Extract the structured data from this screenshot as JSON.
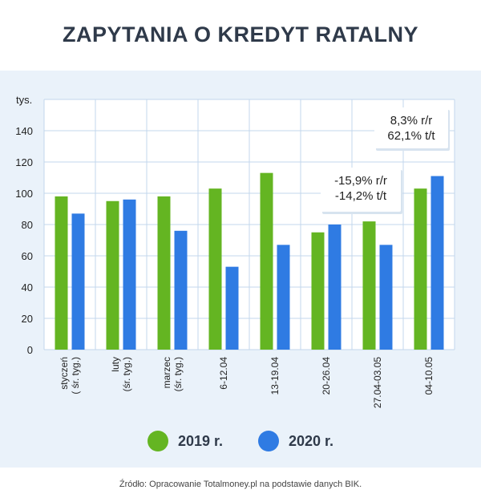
{
  "title": "ZAPYTANIA O KREDYT RATALNY",
  "source": "Źródło: Opracowanie Totalmoney.pl na podstawie danych BIK.",
  "legend": [
    {
      "label": "2019 r.",
      "color": "#64b522"
    },
    {
      "label": "2020 r.",
      "color": "#2f7be3"
    }
  ],
  "annotations": [
    {
      "lines": [
        "8,3% r/r",
        "62,1% t/t"
      ]
    },
    {
      "lines": [
        "-15,9% r/r",
        "-14,2% t/t"
      ]
    }
  ],
  "chart_data": {
    "type": "bar",
    "ylabel": "tys.",
    "ylim": [
      0,
      160
    ],
    "yticks": [
      0,
      20,
      40,
      60,
      80,
      100,
      120,
      140
    ],
    "grid": true,
    "legend_position": "bottom",
    "categories": [
      [
        "styczeń",
        "( śr. tyg.)"
      ],
      [
        "luty",
        "(śr. tyg.)"
      ],
      [
        "marzec",
        "(śr. tyg.)"
      ],
      [
        "6-12.04"
      ],
      [
        "13-19.04"
      ],
      [
        "20-26.04"
      ],
      [
        "27.04-03.05"
      ],
      [
        "04-10.05"
      ]
    ],
    "series": [
      {
        "name": "2019 r.",
        "color": "#64b522",
        "values": [
          98,
          95,
          98,
          103,
          113,
          75,
          82,
          103
        ]
      },
      {
        "name": "2020 r.",
        "color": "#2f7be3",
        "values": [
          87,
          96,
          76,
          53,
          67,
          80,
          67,
          111
        ]
      }
    ]
  }
}
